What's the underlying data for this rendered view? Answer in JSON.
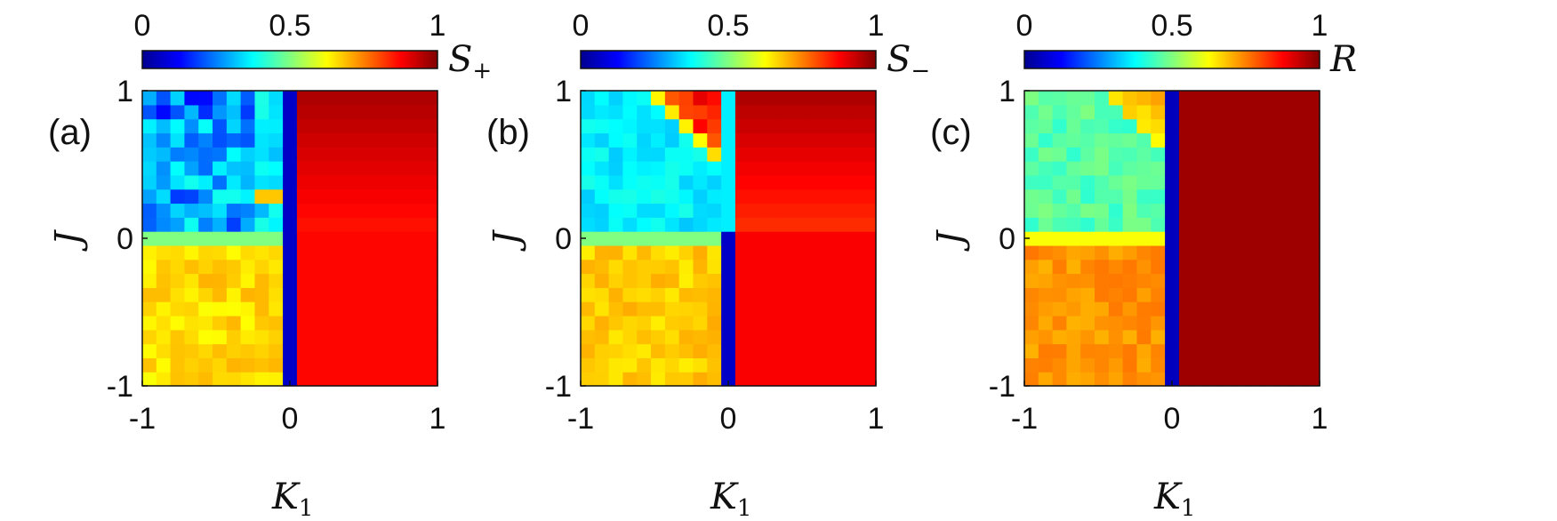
{
  "chart_data": [
    {
      "type": "heatmap",
      "panel_label": "(a)",
      "xlabel": "K",
      "xlabel_sub": "1",
      "ylabel": "J",
      "xlim": [
        -1,
        1
      ],
      "ylim": [
        -1,
        1
      ],
      "xticks": [
        "-1",
        "0",
        "1"
      ],
      "yticks": [
        "-1",
        "0",
        "1"
      ],
      "colorbar": {
        "label": "S",
        "label_sub": "+",
        "range": [
          0,
          1
        ],
        "ticks": [
          "0",
          "0.5",
          "1"
        ],
        "colormap": "jet"
      },
      "grid_size": [
        21,
        21
      ],
      "regions": [
        {
          "x": [
            -1,
            -0.05
          ],
          "y": [
            0.05,
            1
          ],
          "value": 0.35,
          "note": "noisy low region, blue-cyan"
        },
        {
          "x": [
            -1,
            -0.05
          ],
          "y": [
            -0.05,
            0.05
          ],
          "value": 0.5
        },
        {
          "x": [
            -1,
            -0.05
          ],
          "y": [
            -1,
            -0.05
          ],
          "value": 0.66
        },
        {
          "x": [
            -0.05,
            0.05
          ],
          "y": [
            -1,
            1
          ],
          "value": 0.07
        },
        {
          "x": [
            0.05,
            1
          ],
          "y": [
            0,
            1
          ],
          "value_range": [
            0.85,
            0.96
          ],
          "note": "increasing with J"
        },
        {
          "x": [
            0.05,
            1
          ],
          "y": [
            -1,
            0
          ],
          "value": 0.87
        }
      ]
    },
    {
      "type": "heatmap",
      "panel_label": "(b)",
      "xlabel": "K",
      "xlabel_sub": "1",
      "ylabel": "J",
      "xlim": [
        -1,
        1
      ],
      "ylim": [
        -1,
        1
      ],
      "xticks": [
        "-1",
        "0",
        "1"
      ],
      "yticks": [
        "-1",
        "0",
        "1"
      ],
      "colorbar": {
        "label": "S",
        "label_sub": "−",
        "range": [
          0,
          1
        ],
        "ticks": [
          "0",
          "0.5",
          "1"
        ],
        "colormap": "jet"
      },
      "grid_size": [
        21,
        21
      ],
      "regions": [
        {
          "x": [
            -1,
            -0.05
          ],
          "y": [
            0.05,
            1
          ],
          "value": 0.38,
          "note": "cyan with triangular red band near top-right"
        },
        {
          "x": [
            -1,
            -0.05
          ],
          "y": [
            -0.05,
            0.05
          ],
          "value": 0.5
        },
        {
          "x": [
            -1,
            -0.05
          ],
          "y": [
            -1,
            -0.05
          ],
          "value": 0.68
        },
        {
          "x": [
            -0.05,
            0.05
          ],
          "y": [
            0,
            1
          ],
          "value": 0.35
        },
        {
          "x": [
            -0.05,
            0.05
          ],
          "y": [
            -1,
            0
          ],
          "value": 0.07
        },
        {
          "x": [
            0.05,
            1
          ],
          "y": [
            0,
            1
          ],
          "value_range": [
            0.82,
            0.96
          ]
        },
        {
          "x": [
            0.05,
            1
          ],
          "y": [
            -1,
            0
          ],
          "value": 0.88
        }
      ]
    },
    {
      "type": "heatmap",
      "panel_label": "(c)",
      "xlabel": "K",
      "xlabel_sub": "1",
      "ylabel": "J",
      "xlim": [
        -1,
        1
      ],
      "ylim": [
        -1,
        1
      ],
      "xticks": [
        "-1",
        "0",
        "1"
      ],
      "yticks": [
        "-1",
        "0",
        "1"
      ],
      "colorbar": {
        "label": "R",
        "label_sub": "",
        "range": [
          0,
          1
        ],
        "ticks": [
          "0",
          "0.5",
          "1"
        ],
        "colormap": "jet"
      },
      "grid_size": [
        21,
        21
      ],
      "regions": [
        {
          "x": [
            -1,
            -0.05
          ],
          "y": [
            0.05,
            1
          ],
          "value": 0.45,
          "note": "green with yellow-red band near top-right"
        },
        {
          "x": [
            -1,
            -0.05
          ],
          "y": [
            -0.05,
            0.05
          ],
          "value": 0.62
        },
        {
          "x": [
            -1,
            -0.05
          ],
          "y": [
            -1,
            -0.05
          ],
          "value": 0.73
        },
        {
          "x": [
            -0.05,
            0.05
          ],
          "y": [
            -1,
            1
          ],
          "value": 0.06
        },
        {
          "x": [
            0.05,
            1
          ],
          "y": [
            -1,
            1
          ],
          "value": 0.97
        }
      ]
    }
  ]
}
